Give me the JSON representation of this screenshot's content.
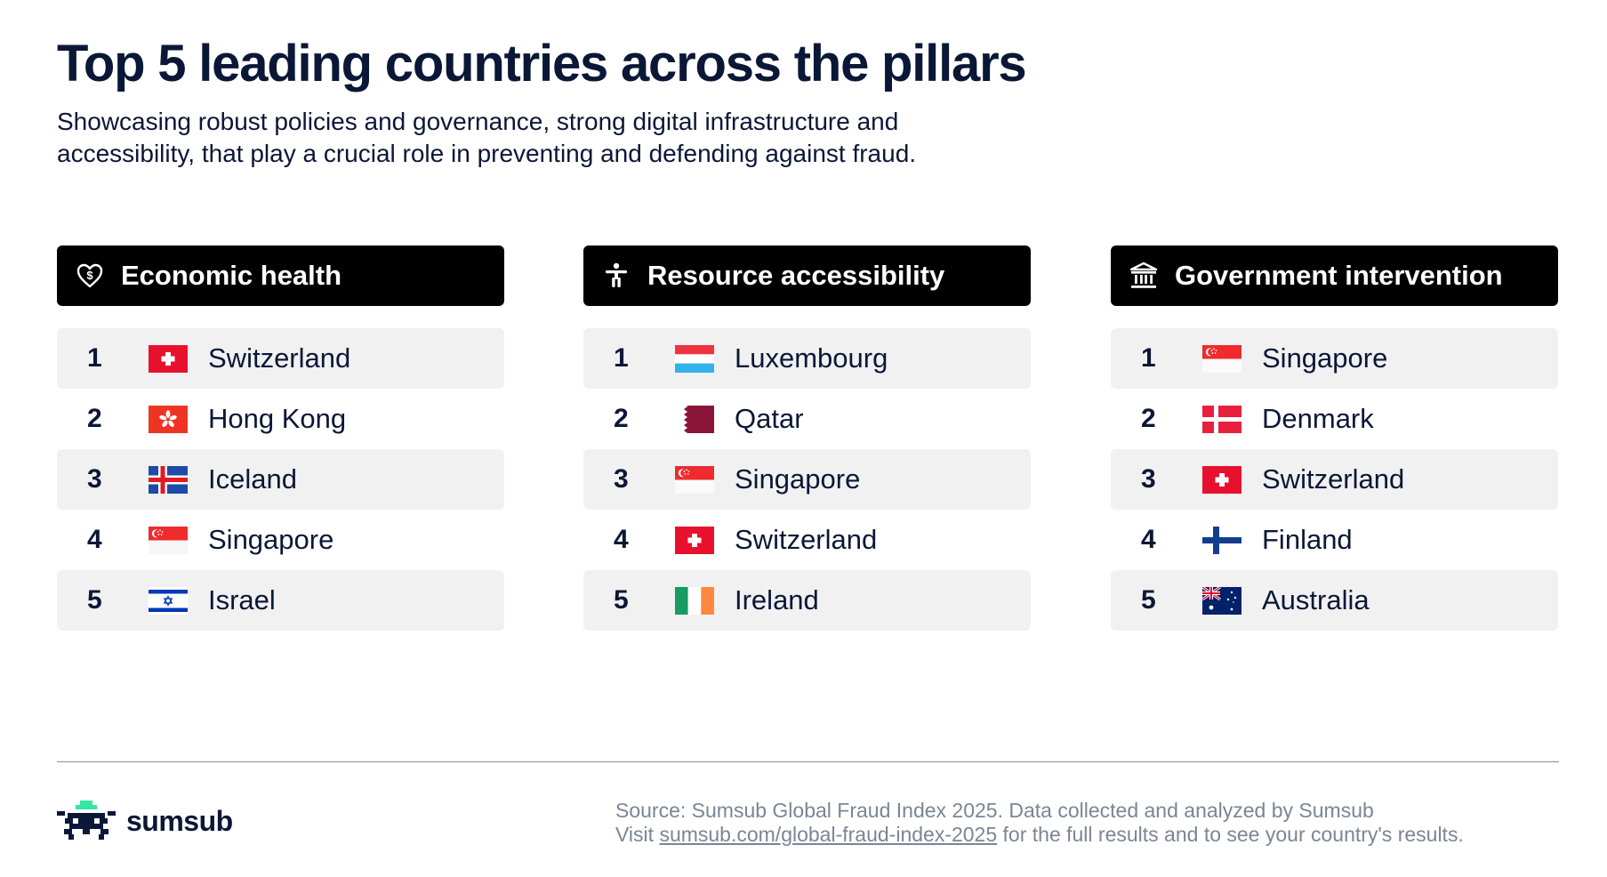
{
  "title": "Top 5 leading countries across the pillars",
  "subtitle": "Showcasing robust policies and governance, strong digital infrastructure and accessibility, that play a crucial role in preventing and defending against fraud.",
  "columns": [
    {
      "icon": "heart-dollar-icon",
      "title": "Economic health",
      "rows": [
        {
          "rank": "1",
          "country": "Switzerland",
          "flag": "flag-switzerland-icon"
        },
        {
          "rank": "2",
          "country": "Hong Kong",
          "flag": "flag-hong-kong-icon"
        },
        {
          "rank": "3",
          "country": "Iceland",
          "flag": "flag-iceland-icon"
        },
        {
          "rank": "4",
          "country": "Singapore",
          "flag": "flag-singapore-icon"
        },
        {
          "rank": "5",
          "country": "Israel",
          "flag": "flag-israel-icon"
        }
      ]
    },
    {
      "icon": "accessibility-person-icon",
      "title": "Resource accessibility",
      "rows": [
        {
          "rank": "1",
          "country": "Luxembourg",
          "flag": "flag-luxembourg-icon"
        },
        {
          "rank": "2",
          "country": "Qatar",
          "flag": "flag-qatar-icon"
        },
        {
          "rank": "3",
          "country": "Singapore",
          "flag": "flag-singapore-icon"
        },
        {
          "rank": "4",
          "country": "Switzerland",
          "flag": "flag-switzerland-icon"
        },
        {
          "rank": "5",
          "country": "Ireland",
          "flag": "flag-ireland-icon"
        }
      ]
    },
    {
      "icon": "government-building-icon",
      "title": "Government intervention",
      "rows": [
        {
          "rank": "1",
          "country": "Singapore",
          "flag": "flag-singapore-icon"
        },
        {
          "rank": "2",
          "country": "Denmark",
          "flag": "flag-denmark-icon"
        },
        {
          "rank": "3",
          "country": "Switzerland",
          "flag": "flag-switzerland-icon"
        },
        {
          "rank": "4",
          "country": "Finland",
          "flag": "flag-finland-icon"
        },
        {
          "rank": "5",
          "country": "Australia",
          "flag": "flag-australia-icon"
        }
      ]
    }
  ],
  "logo": {
    "text": "sumsub",
    "icon": "sumsub-logo-icon"
  },
  "source": {
    "line1": "Source: Sumsub Global Fraud Index 2025. Data collected and analyzed by Sumsub",
    "visit": "Visit",
    "link": "sumsub.com/global-fraud-index-2025",
    "after": "for the full results and to see your country's results."
  },
  "colors": {
    "text": "#0b1736",
    "header_bg": "#000000",
    "row_shade": "#f1f1f2",
    "muted": "#7b8594",
    "logo_green": "#37e6a4"
  }
}
